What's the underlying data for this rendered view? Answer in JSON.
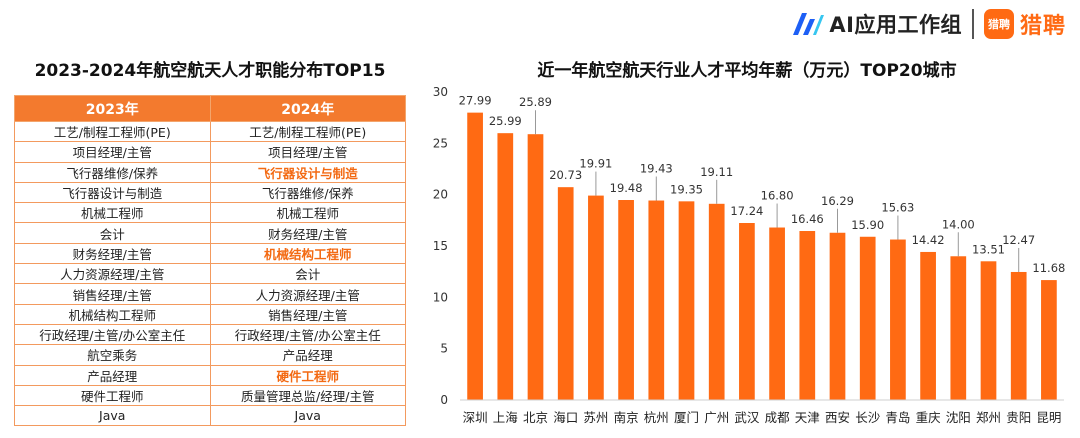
{
  "brand": {
    "ai_text": "AI应用工作组",
    "logo_small": "猎聘",
    "name": "猎聘"
  },
  "left_title": "2023-2024年航空航天人才职能分布TOP15",
  "table": {
    "headers": [
      "2023年",
      "2024年"
    ],
    "rows": [
      {
        "y2023": "工艺/制程工程师(PE)",
        "y2024": "工艺/制程工程师(PE)",
        "hl": false
      },
      {
        "y2023": "项目经理/主管",
        "y2024": "项目经理/主管",
        "hl": false
      },
      {
        "y2023": "飞行器维修/保养",
        "y2024": "飞行器设计与制造",
        "hl": true
      },
      {
        "y2023": "飞行器设计与制造",
        "y2024": "飞行器维修/保养",
        "hl": false
      },
      {
        "y2023": "机械工程师",
        "y2024": "机械工程师",
        "hl": false
      },
      {
        "y2023": "会计",
        "y2024": "财务经理/主管",
        "hl": false
      },
      {
        "y2023": "财务经理/主管",
        "y2024": "机械结构工程师",
        "hl": true
      },
      {
        "y2023": "人力资源经理/主管",
        "y2024": "会计",
        "hl": false
      },
      {
        "y2023": "销售经理/主管",
        "y2024": "人力资源经理/主管",
        "hl": false
      },
      {
        "y2023": "机械结构工程师",
        "y2024": "销售经理/主管",
        "hl": false
      },
      {
        "y2023": "行政经理/主管/办公室主任",
        "y2024": "行政经理/主管/办公室主任",
        "hl": false
      },
      {
        "y2023": "航空乘务",
        "y2024": "产品经理",
        "hl": false
      },
      {
        "y2023": "产品经理",
        "y2024": "硬件工程师",
        "hl": true
      },
      {
        "y2023": "硬件工程师",
        "y2024": "质量管理总监/经理/主管",
        "hl": false
      },
      {
        "y2023": "Java",
        "y2024": "Java",
        "hl": false
      }
    ]
  },
  "right_title": "近一年航空航天行业人才平均年薪（万元）TOP20城市",
  "chart_data": {
    "type": "bar",
    "categories": [
      "深圳",
      "上海",
      "北京",
      "海口",
      "苏州",
      "南京",
      "杭州",
      "厦门",
      "广州",
      "武汉",
      "成都",
      "天津",
      "西安",
      "长沙",
      "青岛",
      "重庆",
      "沈阳",
      "郑州",
      "贵阳",
      "昆明"
    ],
    "values": [
      27.99,
      25.99,
      25.89,
      20.73,
      19.91,
      19.48,
      19.43,
      19.35,
      19.11,
      17.24,
      16.8,
      16.46,
      16.29,
      15.9,
      15.63,
      14.42,
      14.0,
      13.51,
      12.47,
      11.68
    ],
    "value_labels": [
      "27.99",
      "25.99",
      "25.89",
      "20.73",
      "19.91",
      "19.48",
      "19.43",
      "19.35",
      "19.11",
      "17.24",
      "16.80",
      "16.46",
      "16.29",
      "15.90",
      "15.63",
      "14.42",
      "14.00",
      "13.51",
      "12.47",
      "11.68"
    ],
    "yticks": [
      0,
      5,
      10,
      15,
      20,
      25,
      30
    ],
    "ylim": [
      0,
      30
    ],
    "bar_color": "#ff6a13",
    "grid": false
  },
  "colors": {
    "accent": "#ff6a13",
    "header": "#f37a2e",
    "brand_blue": "#1d5ff5"
  }
}
